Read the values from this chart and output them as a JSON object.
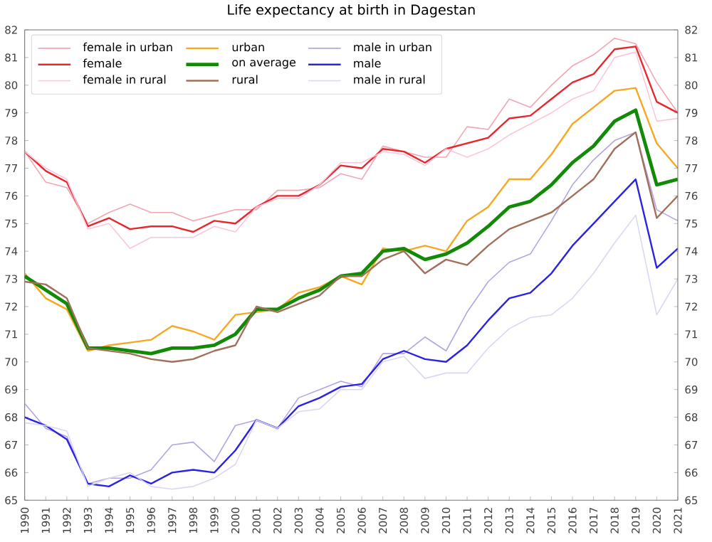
{
  "chart_data": {
    "type": "line",
    "title": "Life expectancy at birth in Dagestan",
    "x": [
      1990,
      1991,
      1992,
      1993,
      1994,
      1995,
      1996,
      1997,
      1998,
      1999,
      2000,
      2001,
      2002,
      2003,
      2004,
      2005,
      2006,
      2007,
      2008,
      2009,
      2010,
      2011,
      2012,
      2013,
      2014,
      2015,
      2016,
      2017,
      2018,
      2019,
      2020,
      2021
    ],
    "xlim": [
      1990,
      2021
    ],
    "xticks": [
      1990,
      1991,
      1992,
      1993,
      1994,
      1995,
      1996,
      1997,
      1998,
      1999,
      2000,
      2001,
      2002,
      2003,
      2004,
      2005,
      2006,
      2007,
      2008,
      2009,
      2010,
      2011,
      2012,
      2013,
      2014,
      2015,
      2016,
      2017,
      2018,
      2019,
      2020,
      2021
    ],
    "ylim": [
      65,
      82
    ],
    "yticks": [
      65,
      66,
      67,
      68,
      69,
      70,
      71,
      72,
      73,
      74,
      75,
      76,
      77,
      78,
      79,
      80,
      81,
      82
    ],
    "y2lim": [
      65,
      82
    ],
    "y2ticks": [
      65,
      66,
      67,
      68,
      69,
      70,
      71,
      72,
      73,
      74,
      75,
      76,
      77,
      78,
      79,
      80,
      81,
      82
    ],
    "legend": "top left",
    "grid": false,
    "marker": "none",
    "line_style": "solid",
    "series": [
      {
        "name": "female in urban",
        "color": "#f2a6b4",
        "values": [
          77.6,
          76.5,
          76.3,
          75.0,
          75.4,
          75.7,
          75.4,
          75.4,
          75.1,
          75.3,
          75.5,
          75.5,
          76.2,
          76.2,
          76.3,
          76.8,
          76.6,
          77.8,
          77.6,
          77.4,
          77.4,
          78.5,
          78.4,
          79.5,
          79.2,
          80.0,
          80.7,
          81.1,
          81.7,
          81.5,
          80.1,
          79.0
        ]
      },
      {
        "name": "urban",
        "color": "#f7a823",
        "values": [
          73.2,
          72.3,
          71.9,
          70.4,
          70.6,
          70.7,
          70.8,
          71.3,
          71.1,
          70.8,
          71.7,
          71.8,
          71.9,
          72.5,
          72.7,
          73.1,
          72.8,
          74.1,
          74.0,
          74.2,
          74.0,
          75.1,
          75.6,
          76.6,
          76.6,
          77.5,
          78.6,
          79.2,
          79.8,
          79.9,
          77.9,
          77.0
        ]
      },
      {
        "name": "male in urban",
        "color": "#b4a4e4",
        "values": [
          68.5,
          67.6,
          67.3,
          65.6,
          65.8,
          65.8,
          66.1,
          67.0,
          67.1,
          66.4,
          67.7,
          67.9,
          67.6,
          68.7,
          69.0,
          69.3,
          69.1,
          70.3,
          70.3,
          70.9,
          70.4,
          71.8,
          72.9,
          73.6,
          73.9,
          75.1,
          76.4,
          77.3,
          78.0,
          78.3,
          75.5,
          75.1
        ]
      },
      {
        "name": "female",
        "color": "#e8262e",
        "values": [
          77.6,
          76.9,
          76.5,
          74.9,
          75.2,
          74.8,
          74.9,
          74.9,
          74.7,
          75.1,
          75.0,
          75.6,
          76.0,
          76.0,
          76.4,
          77.1,
          77.0,
          77.7,
          77.6,
          77.2,
          77.7,
          77.9,
          78.1,
          78.8,
          78.9,
          79.5,
          80.1,
          80.4,
          81.3,
          81.4,
          79.4,
          79.0
        ]
      },
      {
        "name": "on average",
        "color": "#138a07",
        "values": [
          73.1,
          72.6,
          72.1,
          70.5,
          70.5,
          70.4,
          70.3,
          70.5,
          70.5,
          70.6,
          71.0,
          71.9,
          71.9,
          72.3,
          72.6,
          73.1,
          73.2,
          74.0,
          74.1,
          73.7,
          73.9,
          74.3,
          74.9,
          75.6,
          75.8,
          76.4,
          77.2,
          77.8,
          78.7,
          79.1,
          76.4,
          76.6
        ]
      },
      {
        "name": "male",
        "color": "#2a22e6",
        "values": [
          68.0,
          67.7,
          67.2,
          65.6,
          65.5,
          65.9,
          65.6,
          66.0,
          66.1,
          66.0,
          66.8,
          67.9,
          67.6,
          68.4,
          68.7,
          69.1,
          69.2,
          70.1,
          70.4,
          70.1,
          70.0,
          70.6,
          71.5,
          72.3,
          72.5,
          73.2,
          74.2,
          75.0,
          75.8,
          76.6,
          73.4,
          74.1
        ]
      },
      {
        "name": "female in rural",
        "color": "#fcc6da",
        "values": [
          77.6,
          77.0,
          76.6,
          74.8,
          75.0,
          74.1,
          74.5,
          74.5,
          74.5,
          74.9,
          74.7,
          75.6,
          75.9,
          75.9,
          76.4,
          77.2,
          77.2,
          77.6,
          77.5,
          77.1,
          77.7,
          77.4,
          77.7,
          78.2,
          78.6,
          79.0,
          79.5,
          79.8,
          81.0,
          81.2,
          78.7,
          78.8
        ]
      },
      {
        "name": "rural",
        "color": "#a0705a",
        "values": [
          72.9,
          72.8,
          72.3,
          70.5,
          70.4,
          70.3,
          70.1,
          70.0,
          70.1,
          70.4,
          70.6,
          72.0,
          71.8,
          72.1,
          72.4,
          73.1,
          73.1,
          73.7,
          74.0,
          73.2,
          73.7,
          73.5,
          74.2,
          74.8,
          75.1,
          75.4,
          76.0,
          76.6,
          77.7,
          78.3,
          75.2,
          76.0
        ]
      },
      {
        "name": "male in rural",
        "color": "#d8d8f0",
        "values": [
          67.8,
          67.7,
          67.5,
          65.5,
          65.8,
          66.0,
          65.5,
          65.4,
          65.5,
          65.8,
          66.3,
          67.9,
          67.6,
          68.2,
          68.3,
          69.0,
          69.0,
          70.0,
          70.2,
          69.4,
          69.6,
          69.6,
          70.5,
          71.2,
          71.6,
          71.7,
          72.3,
          73.2,
          74.3,
          75.3,
          71.7,
          73.0
        ]
      }
    ]
  }
}
